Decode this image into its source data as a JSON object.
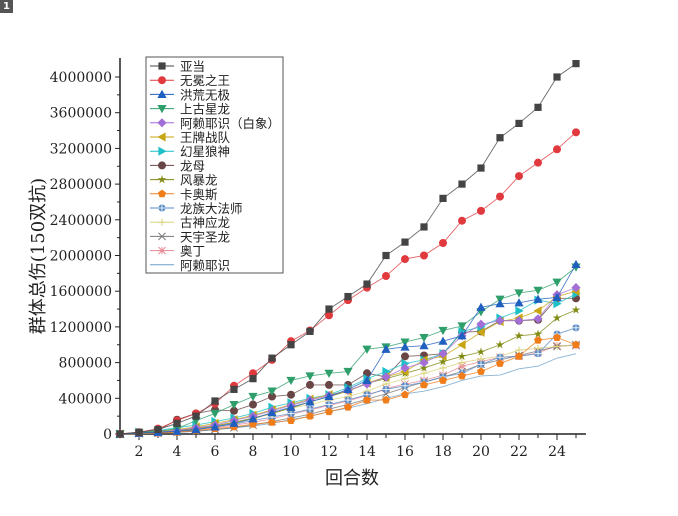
{
  "tag": "1",
  "chart_data": {
    "type": "line",
    "title": "",
    "xlabel": "回合数",
    "ylabel": "群体总伤(150双抗)",
    "xlim": [
      1,
      25.5
    ],
    "ylim": [
      0,
      4200000
    ],
    "xticks": [
      2,
      4,
      6,
      8,
      10,
      12,
      14,
      16,
      18,
      20,
      22,
      24
    ],
    "yticks": [
      0,
      400000,
      800000,
      1200000,
      1600000,
      2000000,
      2400000,
      2800000,
      3200000,
      3600000,
      4000000
    ],
    "legend_position": "top-left",
    "grid": false,
    "x": [
      1,
      2,
      3,
      4,
      5,
      6,
      7,
      8,
      9,
      10,
      11,
      12,
      13,
      14,
      15,
      16,
      17,
      18,
      19,
      20,
      21,
      22,
      23,
      24,
      25
    ],
    "series": [
      {
        "name": "亚当",
        "color": "#444444",
        "marker": "square",
        "values": [
          0,
          20000,
          50000,
          120000,
          200000,
          370000,
          500000,
          620000,
          850000,
          1000000,
          1150000,
          1400000,
          1540000,
          1680000,
          2000000,
          2150000,
          2320000,
          2640000,
          2800000,
          2980000,
          3320000,
          3480000,
          3660000,
          4000000,
          4150000
        ]
      },
      {
        "name": "无冕之王",
        "color": "#e0393e",
        "marker": "circle",
        "values": [
          0,
          20000,
          60000,
          150000,
          230000,
          340000,
          540000,
          680000,
          830000,
          1040000,
          1160000,
          1330000,
          1500000,
          1640000,
          1770000,
          1960000,
          2000000,
          2140000,
          2390000,
          2500000,
          2660000,
          2890000,
          3040000,
          3190000,
          3380000
        ]
      },
      {
        "name": "洪荒无极",
        "color": "#1f5fbf",
        "marker": "triangle-up",
        "values": [
          0,
          10000,
          20000,
          30000,
          50000,
          80000,
          120000,
          170000,
          240000,
          300000,
          360000,
          420000,
          500000,
          600000,
          950000,
          975000,
          990000,
          1040000,
          1100000,
          1420000,
          1460000,
          1470000,
          1510000,
          1530000,
          1900000
        ]
      },
      {
        "name": "上古星龙",
        "color": "#2e9e6b",
        "marker": "triangle-down",
        "values": [
          0,
          10000,
          30000,
          60000,
          150000,
          230000,
          330000,
          420000,
          480000,
          600000,
          650000,
          680000,
          700000,
          950000,
          975000,
          1030000,
          1080000,
          1160000,
          1210000,
          1370000,
          1510000,
          1580000,
          1610000,
          1700000,
          1870000
        ]
      },
      {
        "name": "阿赖耶识（白象）",
        "color": "#a36fd6",
        "marker": "diamond",
        "values": [
          0,
          10000,
          20000,
          40000,
          70000,
          100000,
          150000,
          200000,
          260000,
          320000,
          380000,
          430000,
          490000,
          560000,
          640000,
          740000,
          800000,
          900000,
          1100000,
          1230000,
          1270000,
          1270000,
          1290000,
          1560000,
          1640000
        ]
      },
      {
        "name": "王牌战队",
        "color": "#c8a512",
        "marker": "triangle-left",
        "values": [
          0,
          10000,
          30000,
          50000,
          80000,
          120000,
          160000,
          210000,
          270000,
          330000,
          390000,
          440000,
          480000,
          570000,
          640000,
          700000,
          830000,
          870000,
          1000000,
          1140000,
          1260000,
          1300000,
          1380000,
          1540000,
          1600000
        ]
      },
      {
        "name": "幻星狼神",
        "color": "#1ec0c8",
        "marker": "triangle-right",
        "values": [
          0,
          20000,
          40000,
          70000,
          100000,
          140000,
          180000,
          230000,
          300000,
          350000,
          400000,
          440000,
          520000,
          620000,
          700000,
          790000,
          830000,
          900000,
          1150000,
          1200000,
          1300000,
          1380000,
          1500000,
          1460000,
          1570000
        ]
      },
      {
        "name": "龙母",
        "color": "#6a4545",
        "marker": "hexagon",
        "values": [
          0,
          10000,
          40000,
          160000,
          230000,
          270000,
          260000,
          330000,
          420000,
          440000,
          550000,
          550000,
          550000,
          680000,
          640000,
          870000,
          880000,
          900000,
          1140000,
          1150000,
          1270000,
          1270000,
          1280000,
          1520000,
          1520000
        ]
      },
      {
        "name": "风暴龙",
        "color": "#7f8a12",
        "marker": "star",
        "values": [
          0,
          5000,
          20000,
          40000,
          60000,
          90000,
          130000,
          180000,
          230000,
          290000,
          360000,
          420000,
          480000,
          570000,
          620000,
          680000,
          740000,
          810000,
          870000,
          920000,
          1000000,
          1100000,
          1120000,
          1300000,
          1390000
        ]
      },
      {
        "name": "卡奥斯",
        "color": "#f07d1a",
        "marker": "pentagon",
        "values": [
          0,
          5000,
          10000,
          20000,
          40000,
          60000,
          80000,
          110000,
          130000,
          150000,
          200000,
          250000,
          300000,
          380000,
          380000,
          440000,
          550000,
          600000,
          650000,
          700000,
          790000,
          870000,
          1050000,
          1080000,
          1000000
        ]
      },
      {
        "name": "龙族大法师",
        "color": "#5b8bc4",
        "marker": "circle-cross",
        "values": [
          0,
          5000,
          15000,
          30000,
          50000,
          80000,
          110000,
          150000,
          190000,
          230000,
          280000,
          330000,
          380000,
          440000,
          500000,
          540000,
          580000,
          640000,
          680000,
          780000,
          860000,
          870000,
          900000,
          1120000,
          1190000
        ]
      },
      {
        "name": "古神应龙",
        "color": "#d9d27a",
        "marker": "plus",
        "values": [
          0,
          10000,
          20000,
          40000,
          70000,
          100000,
          130000,
          170000,
          230000,
          290000,
          330000,
          380000,
          420000,
          480000,
          560000,
          620000,
          680000,
          740000,
          800000,
          840000,
          870000,
          940000,
          960000,
          980000,
          1000000
        ]
      },
      {
        "name": "天宇圣龙",
        "color": "#777777",
        "marker": "cross",
        "values": [
          0,
          5000,
          10000,
          20000,
          30000,
          50000,
          70000,
          100000,
          140000,
          180000,
          220000,
          280000,
          330000,
          390000,
          450000,
          520000,
          580000,
          640000,
          700000,
          780000,
          830000,
          880000,
          930000,
          980000,
          1000000
        ]
      },
      {
        "name": "奥丁",
        "color": "#e88a96",
        "marker": "asterisk",
        "values": [
          0,
          5000,
          10000,
          30000,
          50000,
          70000,
          100000,
          130000,
          170000,
          220000,
          270000,
          320000,
          370000,
          430000,
          510000,
          560000,
          600000,
          660000,
          760000,
          810000,
          860000,
          870000,
          910000,
          990000,
          990000
        ]
      },
      {
        "name": "阿赖耶识",
        "color": "#6fa0c8",
        "marker": "none",
        "values": [
          0,
          5000,
          10000,
          20000,
          30000,
          50000,
          70000,
          90000,
          120000,
          160000,
          200000,
          250000,
          290000,
          340000,
          400000,
          450000,
          480000,
          530000,
          600000,
          650000,
          660000,
          730000,
          760000,
          850000,
          900000
        ]
      }
    ]
  }
}
